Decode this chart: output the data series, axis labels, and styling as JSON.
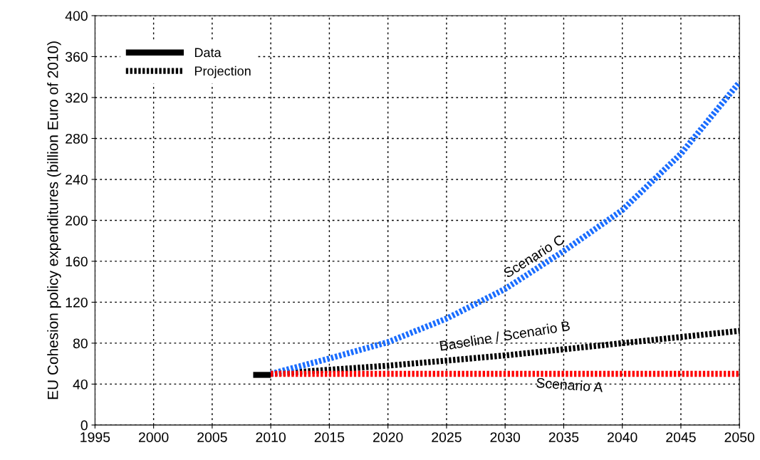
{
  "chart_data": {
    "type": "line",
    "ylabel": "EU Cohesion policy expenditures (billion Euro of 2010)",
    "xlim": [
      1995,
      2050
    ],
    "xticks": [
      1995,
      2000,
      2005,
      2010,
      2015,
      2020,
      2025,
      2030,
      2035,
      2040,
      2045,
      2050
    ],
    "ylim": [
      0,
      400
    ],
    "yticks": [
      0,
      40,
      80,
      120,
      160,
      200,
      240,
      280,
      320,
      360,
      400
    ],
    "grid": true,
    "legend": "top left",
    "marker": "none",
    "series": [
      {
        "name": "Data",
        "color": "#000000",
        "line_style": "solid",
        "x": [
          2008.5,
          2010
        ],
        "values": [
          49,
          49
        ]
      },
      {
        "color": "#ff0000",
        "line_style": "dotted",
        "x": [
          2010,
          2020,
          2030,
          2040,
          2050
        ],
        "values": [
          50,
          50,
          50,
          50,
          50
        ]
      },
      {
        "color": "#1a6dff",
        "line_style": "dotted",
        "x": [
          2010,
          2015,
          2020,
          2025,
          2030,
          2035,
          2040,
          2045,
          2050
        ],
        "values": [
          50,
          65,
          81,
          104,
          133,
          170,
          210,
          265,
          335
        ]
      },
      {
        "name": "Projection",
        "color": "#000000",
        "line_style": "dotted",
        "x": [
          2010,
          2020,
          2030,
          2040,
          2050
        ],
        "values": [
          50,
          58,
          68,
          80,
          92
        ]
      }
    ],
    "annotations": [
      "Scenario A",
      "Baseline / Scenario B",
      "Scenario C"
    ]
  }
}
